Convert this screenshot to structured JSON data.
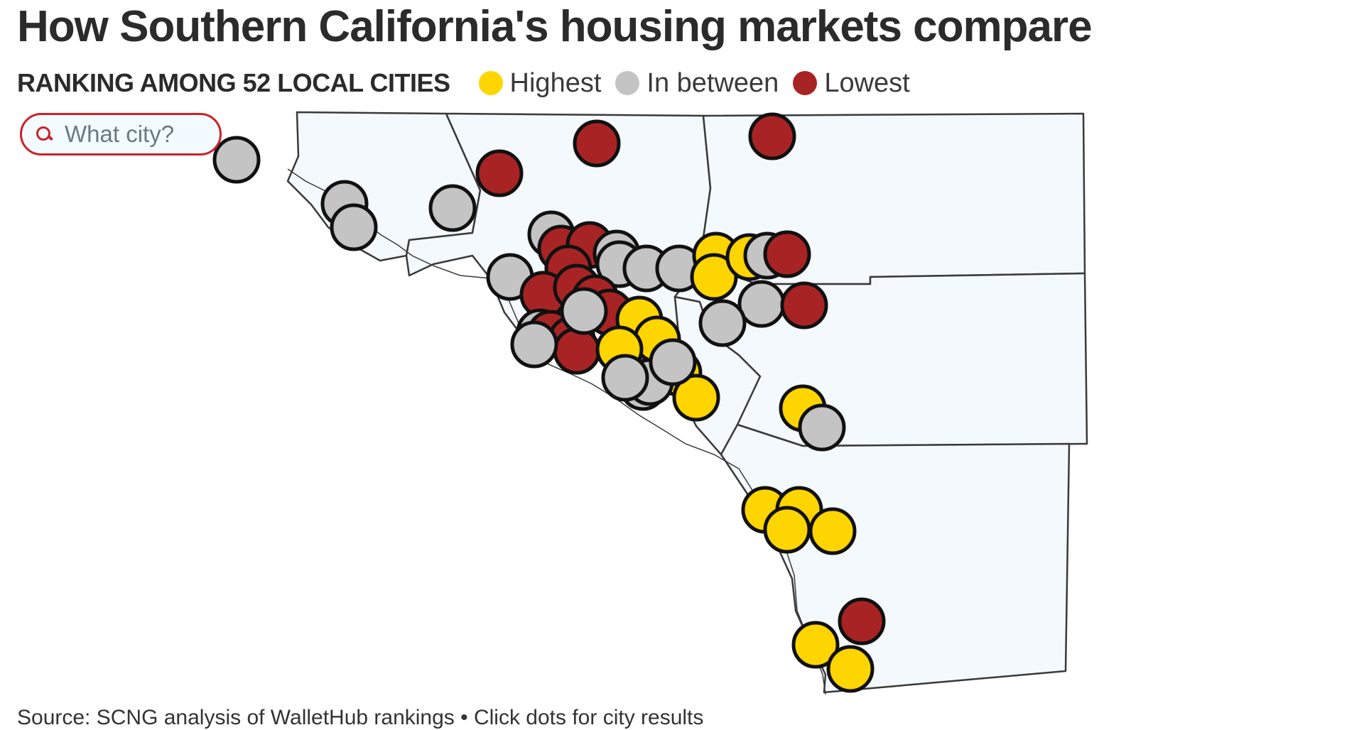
{
  "title": "How Southern California's housing markets compare",
  "legend": {
    "heading": "RANKING AMONG 52 LOCAL CITIES",
    "items": [
      {
        "key": "high",
        "label": "Highest",
        "color": "#ffd500"
      },
      {
        "key": "mid",
        "label": "In between",
        "color": "#c4c4c4"
      },
      {
        "key": "low",
        "label": "Lowest",
        "color": "#a82424"
      }
    ]
  },
  "search": {
    "placeholder": "What city?",
    "value": ""
  },
  "map": {
    "region_fill": "#f4f9fd",
    "border_color": "#3a3a3a",
    "dot_outline": "#111111",
    "city_count": 52
  },
  "source": "Source: SCNG analysis of WalletHub rankings • Click dots for city results"
}
